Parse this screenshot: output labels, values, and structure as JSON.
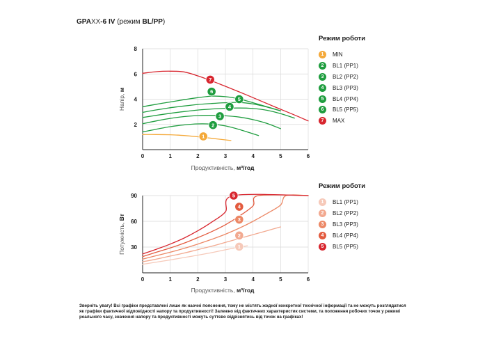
{
  "title": {
    "model": "GPA",
    "model_xx": "XX",
    "model_suffix": "-6 IV",
    "mode_prefix": "(режим ",
    "mode": "BL/PP",
    "mode_suffix": ")"
  },
  "colors": {
    "min": "#f4a93a",
    "green": "#1f9d3f",
    "max": "#d8262f",
    "power": [
      "#f6c9b9",
      "#f2a990",
      "#ec8866",
      "#e35b3f",
      "#d8262f"
    ],
    "grid": "#d9d9d9",
    "axis": "#222222"
  },
  "legend_top": {
    "title": "Режим роботи",
    "items": [
      {
        "num": "1",
        "label": "MIN",
        "color": "#f4a93a"
      },
      {
        "num": "2",
        "label": "BL1 (PP1)",
        "color": "#1f9d3f"
      },
      {
        "num": "3",
        "label": "BL2 (PP2)",
        "color": "#1f9d3f"
      },
      {
        "num": "4",
        "label": "BL3 (PP3)",
        "color": "#1f9d3f"
      },
      {
        "num": "5",
        "label": "BL4 (PP4)",
        "color": "#1f9d3f"
      },
      {
        "num": "6",
        "label": "BL5 (PP5)",
        "color": "#1f9d3f"
      },
      {
        "num": "7",
        "label": "MAX",
        "color": "#d8262f"
      }
    ]
  },
  "legend_bottom": {
    "title": "Режим роботи",
    "items": [
      {
        "num": "1",
        "label": "BL1 (PP1)",
        "color": "#f6c9b9"
      },
      {
        "num": "2",
        "label": "BL2 (PP2)",
        "color": "#f2a990"
      },
      {
        "num": "3",
        "label": "BL3 (PP3)",
        "color": "#ec8866"
      },
      {
        "num": "4",
        "label": "BL4 (PP4)",
        "color": "#e35b3f"
      },
      {
        "num": "5",
        "label": "BL5 (PP5)",
        "color": "#d8262f"
      }
    ]
  },
  "note": "Зверніть увагу! Всі графіки представлені лише як наочні пояснення, тому не містять жодної конкретної технічної інформації та не можуть розглядатися як графіки фактичної відповідності напору та продуктивності! Залежно від фактичних характеристик системи, та положення робочих точок у режимі реального часу, значення напору та продуктивності можуть суттєво відрізнятись від точок на графіках!",
  "chart_data": [
    {
      "type": "line",
      "xlabel_light": "Продуктивність, ",
      "xlabel_bold": "м³/год",
      "ylabel_light": "Напір, ",
      "ylabel_bold": "м",
      "xlim": [
        0,
        6
      ],
      "ylim": [
        0,
        8
      ],
      "xticks": [
        "0",
        "1",
        "2",
        "3",
        "4",
        "5",
        "6"
      ],
      "yticks": [
        "2",
        "4",
        "6",
        "8"
      ],
      "grid": true,
      "series": [
        {
          "num": "1",
          "color": "#f4a93a",
          "x": [
            0,
            0.5,
            1,
            1.5,
            2,
            2.5,
            3.2
          ],
          "y": [
            1.2,
            1.2,
            1.18,
            1.12,
            1.02,
            0.9,
            0.72
          ],
          "marker": [
            2.2,
            1.05
          ]
        },
        {
          "num": "2",
          "color": "#1f9d3f",
          "x": [
            0,
            0.5,
            1,
            1.5,
            2,
            2.5,
            3,
            3.5,
            4.2
          ],
          "y": [
            1.4,
            1.62,
            1.82,
            1.96,
            2.04,
            2.02,
            1.88,
            1.6,
            1.12
          ],
          "marker": [
            2.55,
            1.95
          ]
        },
        {
          "num": "3",
          "color": "#1f9d3f",
          "x": [
            0,
            0.5,
            1,
            1.5,
            2,
            2.5,
            3,
            3.5,
            4,
            4.5,
            5
          ],
          "y": [
            2.05,
            2.28,
            2.48,
            2.62,
            2.7,
            2.72,
            2.68,
            2.58,
            2.38,
            2.08,
            1.66
          ],
          "marker": [
            2.8,
            2.65
          ]
        },
        {
          "num": "4",
          "color": "#1f9d3f",
          "x": [
            0,
            0.5,
            1,
            1.5,
            2,
            2.5,
            3,
            3.5,
            4,
            4.5,
            5,
            5.5
          ],
          "y": [
            2.55,
            2.72,
            2.88,
            3.02,
            3.14,
            3.22,
            3.28,
            3.3,
            3.26,
            3.12,
            2.86,
            2.5
          ],
          "marker": [
            3.15,
            3.4
          ]
        },
        {
          "num": "5",
          "color": "#1f9d3f",
          "x": [
            0,
            0.5,
            1,
            1.5,
            2,
            2.5,
            3,
            3.5,
            4,
            4.5,
            5
          ],
          "y": [
            2.95,
            3.15,
            3.32,
            3.46,
            3.58,
            3.66,
            3.72,
            3.74,
            3.62,
            3.38,
            3.08
          ],
          "marker": [
            3.5,
            4.0
          ]
        },
        {
          "num": "6",
          "color": "#1f9d3f",
          "x": [
            0,
            0.5,
            1,
            1.5,
            2,
            2.5,
            3,
            3.5,
            4,
            4.5,
            5
          ],
          "y": [
            3.4,
            3.6,
            3.78,
            3.96,
            4.12,
            4.24,
            4.2,
            4.02,
            3.72,
            3.4,
            3.08
          ],
          "marker": [
            2.5,
            4.6
          ]
        },
        {
          "num": "7",
          "color": "#d8262f",
          "x": [
            0,
            0.5,
            1,
            1.5,
            2,
            2.5,
            3,
            3.5,
            4,
            4.5,
            5,
            5.5,
            6
          ],
          "y": [
            6.05,
            6.18,
            6.22,
            6.16,
            5.85,
            5.45,
            5.02,
            4.58,
            4.12,
            3.66,
            3.2,
            2.75,
            2.28
          ],
          "marker": [
            2.45,
            5.55
          ]
        }
      ]
    },
    {
      "type": "line",
      "xlabel_light": "Продуктивність, ",
      "xlabel_bold": "м³/год",
      "ylabel_light": "Потужність, ",
      "ylabel_bold": "Вт",
      "xlim": [
        0,
        6
      ],
      "ylim": [
        0,
        90
      ],
      "xticks": [
        "0",
        "1",
        "2",
        "3",
        "4",
        "5",
        "6"
      ],
      "yticks": [
        "30",
        "60",
        "90"
      ],
      "grid": true,
      "series": [
        {
          "num": "1",
          "color": "#f6c9b9",
          "x": [
            0,
            0.5,
            1,
            1.5,
            2,
            2.5,
            3,
            3.5,
            3.8
          ],
          "y": [
            10,
            12.5,
            15,
            17.8,
            20.6,
            23.5,
            26.8,
            30,
            31.5
          ],
          "marker": [
            3.5,
            30.5
          ]
        },
        {
          "num": "2",
          "color": "#f2a990",
          "x": [
            0,
            0.5,
            1,
            1.5,
            2,
            2.5,
            3,
            3.5,
            4,
            4.5,
            5
          ],
          "y": [
            13,
            16,
            19.5,
            23,
            27,
            31,
            35.5,
            40,
            44.5,
            49,
            53.5
          ],
          "marker": [
            3.5,
            43.5
          ]
        },
        {
          "num": "3",
          "color": "#ec8866",
          "x": [
            0,
            0.5,
            1,
            1.5,
            2,
            2.5,
            3,
            3.5,
            4,
            4.5,
            5,
            5.2,
            6
          ],
          "y": [
            16,
            20,
            24,
            28.5,
            33.5,
            39,
            45,
            52,
            60,
            69,
            79,
            90,
            90
          ],
          "marker": [
            3.5,
            62
          ]
        },
        {
          "num": "4",
          "color": "#e35b3f",
          "x": [
            0,
            0.5,
            1,
            1.5,
            2,
            2.5,
            3,
            3.5,
            4,
            4.2,
            6
          ],
          "y": [
            19,
            24,
            29,
            34.5,
            41,
            48,
            56,
            66,
            78,
            90,
            90
          ],
          "marker": [
            3.5,
            77
          ]
        },
        {
          "num": "5",
          "color": "#d8262f",
          "x": [
            0,
            0.5,
            1,
            1.5,
            2,
            2.5,
            3,
            3.3,
            6
          ],
          "y": [
            22,
            27.5,
            33.5,
            40.5,
            49,
            59,
            71,
            90,
            90
          ],
          "marker": [
            3.3,
            90
          ]
        }
      ]
    }
  ]
}
